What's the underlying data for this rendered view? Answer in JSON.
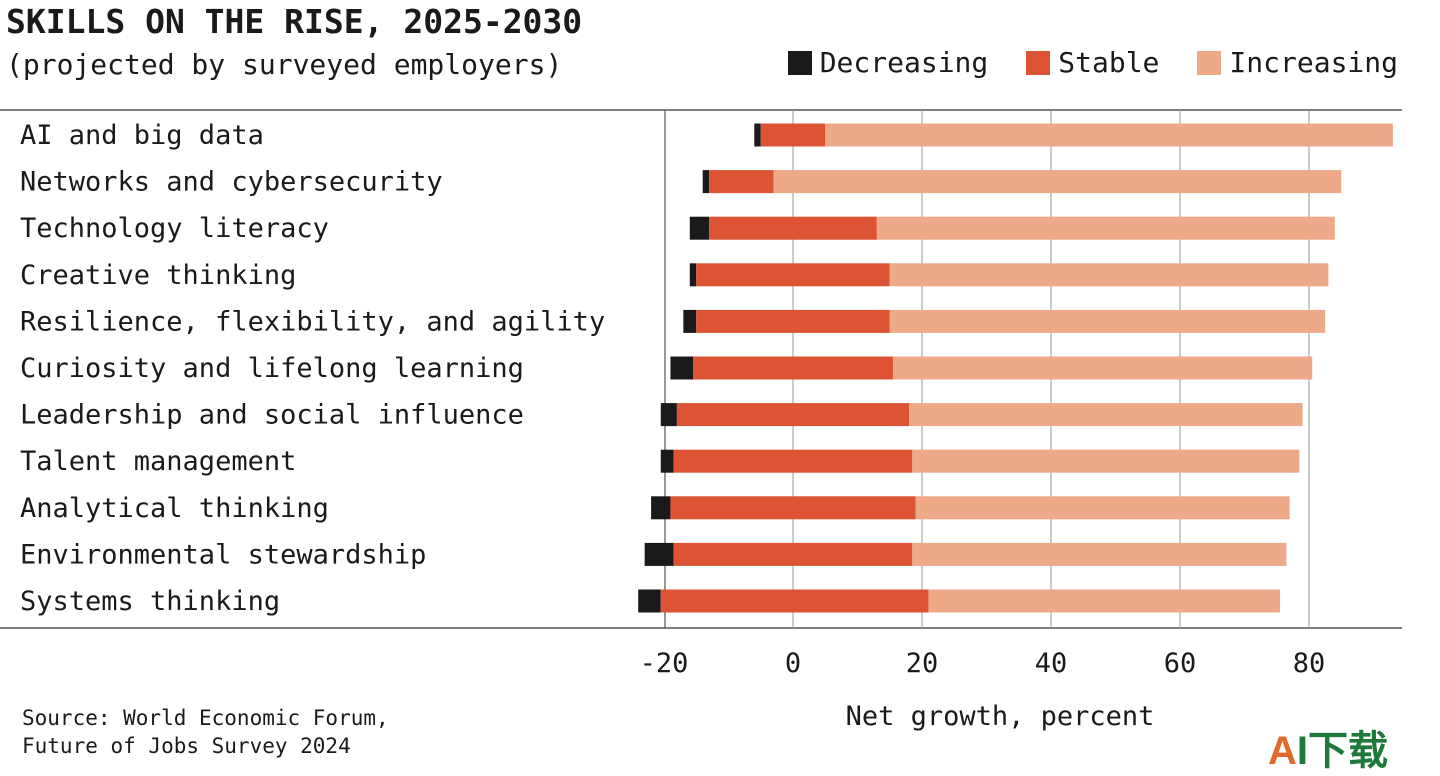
{
  "title": "SKILLS ON THE RISE, 2025-2030",
  "subtitle": "(projected by surveyed employers)",
  "source_lines": [
    "Source: World Economic Forum,",
    "Future of Jobs Survey 2024"
  ],
  "watermark": {
    "first": "A",
    "rest": "I下载"
  },
  "chart_data": {
    "type": "bar",
    "orientation": "horizontal",
    "stacked": true,
    "xlabel": "Net growth, percent",
    "xlim": [
      -24,
      94
    ],
    "xticks": [
      -20,
      0,
      20,
      40,
      60,
      80
    ],
    "grid": true,
    "legend_position": "top-right",
    "categories": [
      "AI and big data",
      "Networks and cybersecurity",
      "Technology literacy",
      "Creative thinking",
      "Resilience, flexibility, and agility",
      "Curiosity and lifelong learning",
      "Leadership and social influence",
      "Talent management",
      "Analytical thinking",
      "Environmental stewardship",
      "Systems thinking"
    ],
    "series": [
      {
        "name": "Decreasing",
        "color": "#1a1a1a",
        "values": [
          2,
          2,
          3,
          2,
          2,
          4,
          3,
          2,
          3,
          5,
          3
        ]
      },
      {
        "name": "Stable",
        "color": "#dd5434",
        "values": [
          10,
          10,
          26,
          30,
          30,
          31,
          36,
          38,
          38,
          37,
          41
        ]
      },
      {
        "name": "Increasing",
        "color": "#eda988",
        "values": [
          88,
          88,
          71,
          68,
          68,
          65,
          61,
          60,
          59,
          58,
          56
        ]
      }
    ],
    "bar_extents": [
      {
        "start": -6,
        "splits": [
          -5,
          5
        ],
        "end": 93
      },
      {
        "start": -14,
        "splits": [
          -13,
          -3
        ],
        "end": 85
      },
      {
        "start": -16,
        "splits": [
          -13,
          13
        ],
        "end": 84
      },
      {
        "start": -16,
        "splits": [
          -15,
          15
        ],
        "end": 83
      },
      {
        "start": -17,
        "splits": [
          -15,
          15
        ],
        "end": 82.5
      },
      {
        "start": -19,
        "splits": [
          -15.5,
          15.5
        ],
        "end": 80.5
      },
      {
        "start": -20.5,
        "splits": [
          -18,
          18
        ],
        "end": 79
      },
      {
        "start": -20.5,
        "splits": [
          -18.5,
          18.5
        ],
        "end": 78.5
      },
      {
        "start": -22,
        "splits": [
          -19,
          19
        ],
        "end": 77
      },
      {
        "start": -23,
        "splits": [
          -18.5,
          18.5
        ],
        "end": 76.5
      },
      {
        "start": -24,
        "splits": [
          -20.5,
          21
        ],
        "end": 75.5
      }
    ]
  }
}
